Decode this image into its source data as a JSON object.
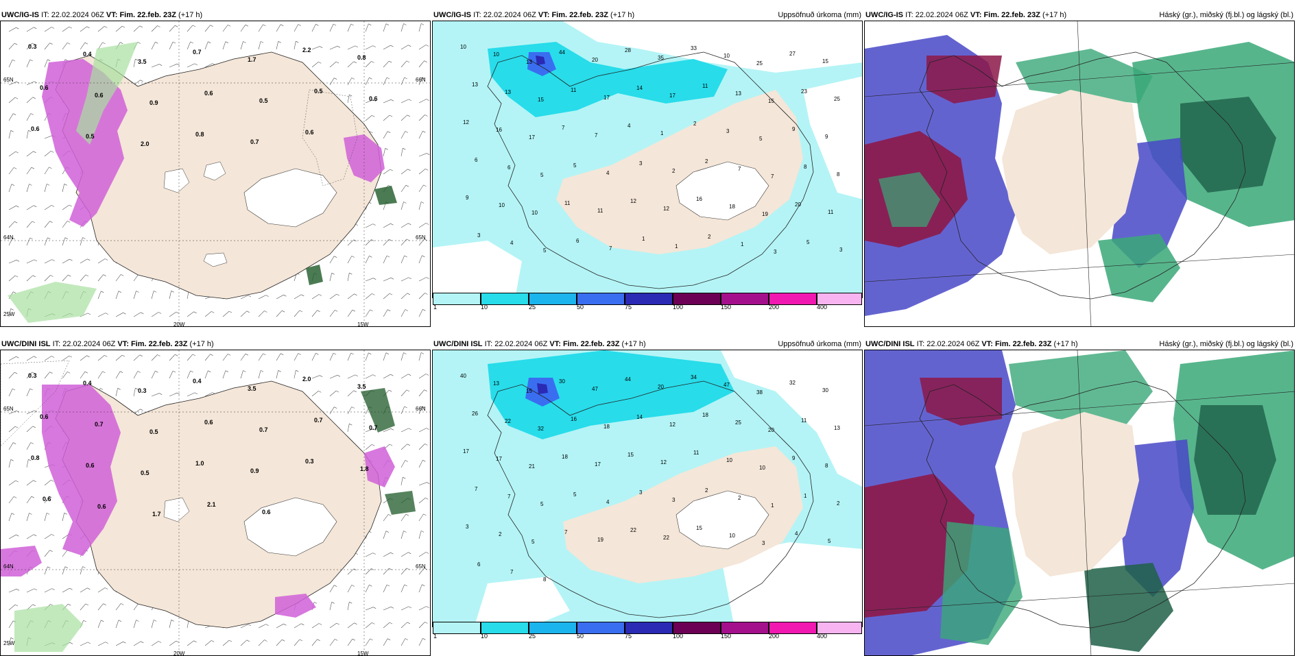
{
  "panels": [
    {
      "id": "top-left",
      "model": "UWC/IG-IS",
      "it_label": "IT:",
      "it_value": "22.02.2024 06Z",
      "vt_label": "VT:",
      "vt_value": "Fim. 22.feb. 23Z",
      "lead": "(+17 h)",
      "variable_title": "",
      "coords": [
        "65N",
        "64N",
        "25W",
        "20W",
        "15W",
        "66N",
        "65N"
      ],
      "labels": [
        "0.3",
        "0.4",
        "3.5",
        "0.7",
        "1.7",
        "2.2",
        "0.8",
        "0.6",
        "0.6",
        "0.9",
        "0.6",
        "0.5",
        "0.5",
        "0.6",
        "0.6",
        "0.5",
        "2.0",
        "0.8",
        "0.7",
        "0.6"
      ]
    },
    {
      "id": "top-middle",
      "model": "UWC/IG-IS",
      "it_label": "IT:",
      "it_value": "22.02.2024 06Z",
      "vt_label": "VT:",
      "vt_value": "Fim. 22.feb. 23Z",
      "lead": "(+17 h)",
      "variable_title": "Uppsöfnuð úrkoma (mm)",
      "labels": [
        "10",
        "10",
        "13",
        "44",
        "20",
        "28",
        "35",
        "33",
        "10",
        "25",
        "27",
        "15",
        "13",
        "13",
        "15",
        "11",
        "17",
        "14",
        "17",
        "11",
        "13",
        "15",
        "23",
        "25",
        "12",
        "16",
        "17",
        "7",
        "7",
        "4",
        "1",
        "2",
        "3",
        "5",
        "9",
        "9",
        "6",
        "6",
        "5",
        "5",
        "4",
        "3",
        "2",
        "2",
        "7",
        "7",
        "8",
        "8",
        "9",
        "10",
        "10",
        "11",
        "11",
        "12",
        "12",
        "16",
        "18",
        "19",
        "20",
        "11",
        "3",
        "4",
        "5",
        "6",
        "7",
        "1",
        "1",
        "2",
        "1",
        "3",
        "5",
        "3"
      ]
    },
    {
      "id": "top-right",
      "model": "UWC/IG-IS",
      "it_label": "IT:",
      "it_value": "22.02.2024 06Z",
      "vt_label": "VT:",
      "vt_value": "Fim. 22.feb. 23Z",
      "lead": "(+17 h)",
      "variable_title": "Háský (gr.), miðský (fj.bl.) og lágský (bl.)"
    },
    {
      "id": "bottom-left",
      "model": "UWC/DINI ISL",
      "it_label": "IT:",
      "it_value": "22.02.2024 06Z",
      "vt_label": "VT:",
      "vt_value": "Fim. 22.feb. 23Z",
      "lead": "(+17 h)",
      "variable_title": "",
      "coords": [
        "65N",
        "64N",
        "25W",
        "20W",
        "15W",
        "66N",
        "65N"
      ],
      "labels": [
        "0.3",
        "0.4",
        "0.3",
        "0.4",
        "3.5",
        "2.0",
        "3.5",
        "0.6",
        "0.7",
        "0.5",
        "0.6",
        "0.7",
        "0.7",
        "0.7",
        "0.8",
        "0.6",
        "0.5",
        "1.0",
        "0.9",
        "0.3",
        "1.8",
        "0.6",
        "0.6",
        "1.7",
        "2.1",
        "0.6"
      ]
    },
    {
      "id": "bottom-middle",
      "model": "UWC/DINI ISL",
      "it_label": "IT:",
      "it_value": "22.02.2024 06Z",
      "vt_label": "VT:",
      "vt_value": "Fim. 22.feb. 23Z",
      "lead": "(+17 h)",
      "variable_title": "Uppsöfnuð úrkoma (mm)",
      "labels": [
        "40",
        "13",
        "15",
        "30",
        "47",
        "44",
        "20",
        "34",
        "47",
        "38",
        "32",
        "30",
        "26",
        "22",
        "32",
        "16",
        "18",
        "14",
        "12",
        "18",
        "25",
        "20",
        "11",
        "13",
        "17",
        "17",
        "21",
        "18",
        "17",
        "15",
        "12",
        "11",
        "10",
        "10",
        "9",
        "8",
        "7",
        "7",
        "5",
        "5",
        "4",
        "3",
        "3",
        "2",
        "2",
        "1",
        "1",
        "2",
        "3",
        "2",
        "5",
        "7",
        "19",
        "22",
        "22",
        "15",
        "10",
        "3",
        "4",
        "5",
        "6",
        "7",
        "8"
      ]
    },
    {
      "id": "bottom-right",
      "model": "UWC/DINI ISL",
      "it_label": "IT:",
      "it_value": "22.02.2024 06Z",
      "vt_label": "VT:",
      "vt_value": "Fim. 22.feb. 23Z",
      "lead": "(+17 h)",
      "variable_title": "Háský (gr.), miðský (fj.bl.) og lágský (bl.)"
    }
  ],
  "legend": {
    "ticks": [
      "1",
      "10",
      "25",
      "50",
      "75",
      "100",
      "150",
      "200",
      "400"
    ],
    "colors": [
      "#b4f4f6",
      "#28dcea",
      "#1cb4ec",
      "#3a6ef0",
      "#2a2ab4",
      "#6c0054",
      "#a4108c",
      "#f018b0",
      "#f8b4f0"
    ]
  },
  "colors": {
    "land": "#f4e6d8",
    "ice": "#ffffff",
    "precip_light": "#b4f4f6",
    "precip_mid": "#28dcea",
    "snow": "#d060d8",
    "rain_green": "#a8e0a0",
    "cloud_high": "#3aa878",
    "cloud_mid": "#4848c8",
    "cloud_low": "#8c1848"
  }
}
